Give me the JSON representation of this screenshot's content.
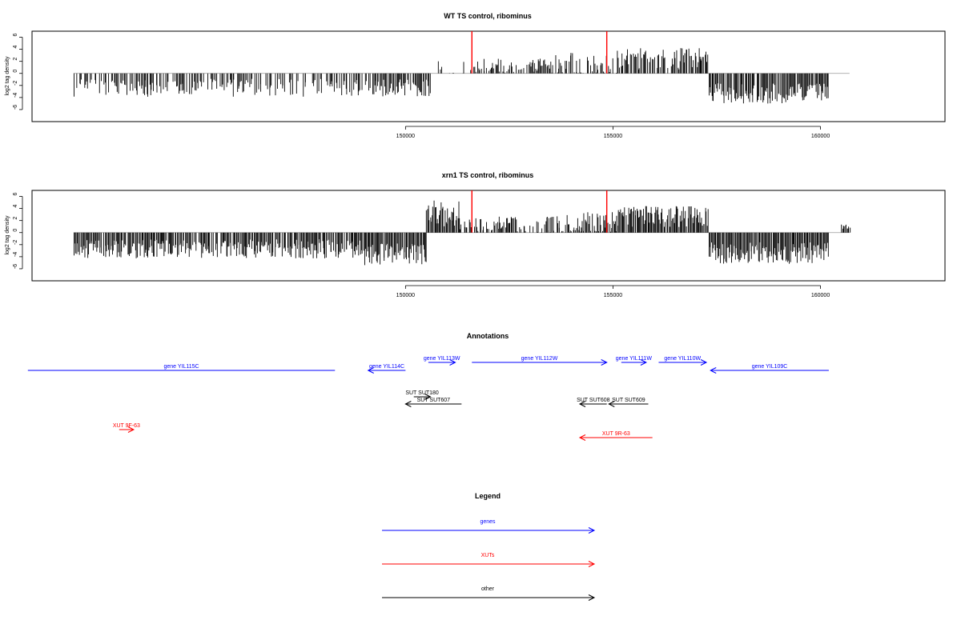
{
  "colors": {
    "gene": "#0000ff",
    "xut": "#ff0000",
    "other": "#000000",
    "marker": "#ff0000",
    "axis": "#000000",
    "baseline": "#999999"
  },
  "chart_data": [
    {
      "type": "bar",
      "title": "WT TS control, ribominus",
      "ylabel": "log2 tag density",
      "xlim": [
        141000,
        163000
      ],
      "ylim": [
        -8,
        7
      ],
      "x_ticks": [
        150000,
        155000,
        160000
      ],
      "x_tick_labels": [
        "150000",
        "155000",
        "160000"
      ],
      "y_ticks": [
        -6,
        -4,
        -2,
        0,
        2,
        4,
        6
      ],
      "y_tick_labels": [
        "-6",
        "-4",
        "-2",
        "0",
        "2",
        "4",
        "6"
      ],
      "markers": [
        {
          "x": 151600,
          "y": 7
        },
        {
          "x": 154850,
          "y": 7
        }
      ],
      "profile": [
        {
          "x": [
            142000,
            149200
          ],
          "mean": -2.4,
          "amp": 1.5,
          "density": 0.55
        },
        {
          "x": [
            149200,
            150600
          ],
          "mean": -2.4,
          "amp": 1.4,
          "density": 0.85
        },
        {
          "x": [
            150600,
            151500
          ],
          "mean": 0.3,
          "amp": 1.8,
          "density": 0.25
        },
        {
          "x": [
            151500,
            153500
          ],
          "mean": 1.3,
          "amp": 1.2,
          "density": 0.55
        },
        {
          "x": [
            153500,
            155100
          ],
          "mean": 0.8,
          "amp": 2.6,
          "density": 0.7
        },
        {
          "x": [
            155100,
            157300
          ],
          "mean": 2.4,
          "amp": 1.8,
          "density": 0.8
        },
        {
          "x": [
            157300,
            160200
          ],
          "mean": -3.3,
          "amp": 1.7,
          "density": 0.9
        }
      ]
    },
    {
      "type": "bar",
      "title": "xrn1 TS control, ribominus",
      "ylabel": "log2 tag density",
      "xlim": [
        141000,
        163000
      ],
      "ylim": [
        -8,
        7
      ],
      "x_ticks": [
        150000,
        155000,
        160000
      ],
      "x_tick_labels": [
        "150000",
        "155000",
        "160000"
      ],
      "y_ticks": [
        -6,
        -4,
        -2,
        0,
        2,
        4,
        6
      ],
      "y_tick_labels": [
        "-6",
        "-4",
        "-2",
        "0",
        "2",
        "4",
        "6"
      ],
      "markers": [
        {
          "x": 151600,
          "y": 7
        },
        {
          "x": 154850,
          "y": 7
        }
      ],
      "profile": [
        {
          "x": [
            142000,
            149000
          ],
          "mean": -2.7,
          "amp": 1.6,
          "density": 0.9
        },
        {
          "x": [
            149000,
            150500
          ],
          "mean": -3.6,
          "amp": 1.8,
          "density": 1.0
        },
        {
          "x": [
            150500,
            151300
          ],
          "mean": 3.2,
          "amp": 2.2,
          "density": 1.0
        },
        {
          "x": [
            151300,
            153700
          ],
          "mean": 1.3,
          "amp": 1.4,
          "density": 0.65
        },
        {
          "x": [
            153700,
            155100
          ],
          "mean": 1.0,
          "amp": 2.4,
          "density": 0.85
        },
        {
          "x": [
            155100,
            157300
          ],
          "mean": 2.6,
          "amp": 1.8,
          "density": 0.95
        },
        {
          "x": [
            157300,
            160200
          ],
          "mean": -3.4,
          "amp": 1.8,
          "density": 1.0
        },
        {
          "x": [
            160500,
            160700
          ],
          "mean": 1.0,
          "amp": 0.5,
          "density": 1.0
        }
      ]
    }
  ],
  "annotations": {
    "title": "Annotations",
    "features": [
      {
        "label": "gene YIL115C",
        "type": "gene",
        "start": 140900,
        "end": 148300,
        "row": 1,
        "dir": "none"
      },
      {
        "label": "gene YIL114C",
        "type": "gene",
        "start": 149100,
        "end": 150000,
        "row": 1,
        "dir": "left"
      },
      {
        "label": "gene YIL113W",
        "type": "gene",
        "start": 150550,
        "end": 151200,
        "row": 0,
        "dir": "right"
      },
      {
        "label": "gene YIL112W",
        "type": "gene",
        "start": 151600,
        "end": 154850,
        "row": 0,
        "dir": "right"
      },
      {
        "label": "gene YIL111W",
        "type": "gene",
        "start": 155200,
        "end": 155800,
        "row": 0,
        "dir": "right"
      },
      {
        "label": "gene YIL110W",
        "type": "gene",
        "start": 156100,
        "end": 157250,
        "row": 0,
        "dir": "right"
      },
      {
        "label": "gene YIL109C",
        "type": "gene",
        "start": 157350,
        "end": 160200,
        "row": 1,
        "dir": "left"
      },
      {
        "label": "SUT SUT180",
        "type": "other",
        "start": 150200,
        "end": 150600,
        "row": 2,
        "dir": "right"
      },
      {
        "label": "SUT SUT607",
        "type": "other",
        "start": 150000,
        "end": 151350,
        "row": 3,
        "dir": "left"
      },
      {
        "label": "SUT SUT608",
        "type": "other",
        "start": 154200,
        "end": 154850,
        "row": 3,
        "dir": "left"
      },
      {
        "label": "SUT SUT609",
        "type": "other",
        "start": 154900,
        "end": 155850,
        "row": 3,
        "dir": "left"
      },
      {
        "label": "XUT 9F-63",
        "type": "xut",
        "start": 143100,
        "end": 143450,
        "row": 4,
        "dir": "right"
      },
      {
        "label": "XUT 9R-63",
        "type": "xut",
        "start": 154200,
        "end": 155950,
        "row": 5,
        "dir": "left"
      }
    ]
  },
  "legend": {
    "title": "Legend",
    "items": [
      {
        "label": "genes",
        "type": "gene"
      },
      {
        "label": "XUTs",
        "type": "xut"
      },
      {
        "label": "other",
        "type": "other"
      }
    ]
  }
}
